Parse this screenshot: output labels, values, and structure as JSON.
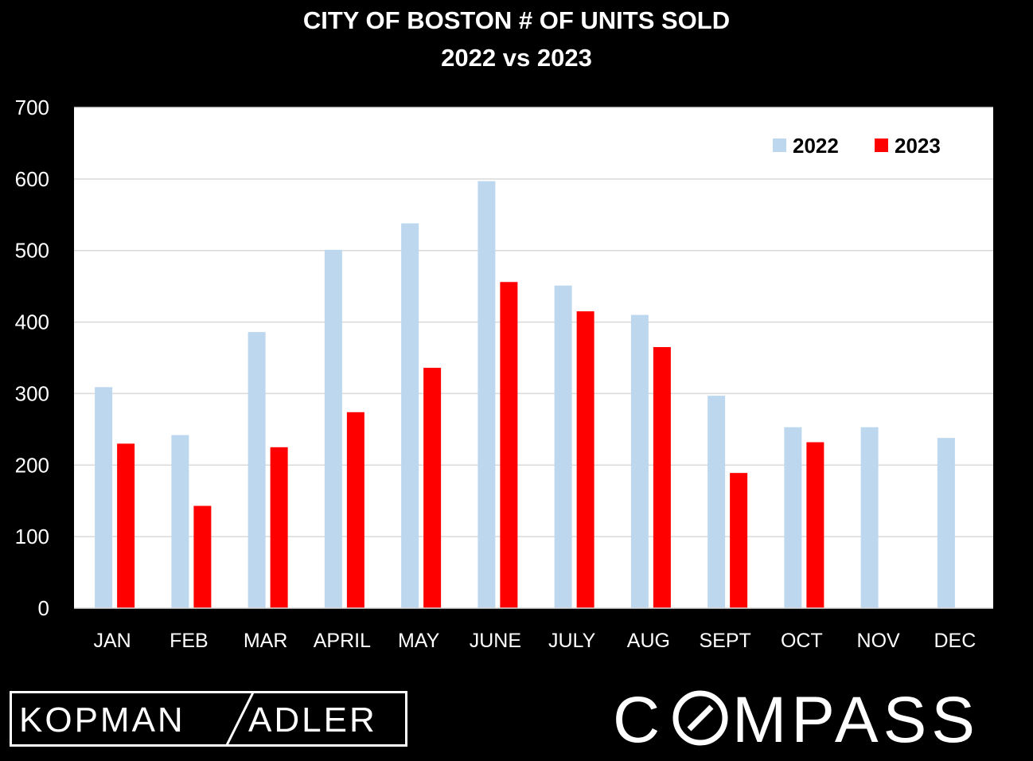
{
  "chart_data": {
    "type": "bar",
    "title": "CITY OF BOSTON # OF UNITS SOLD",
    "subtitle": "2022 vs 2023",
    "categories": [
      "JAN",
      "FEB",
      "MAR",
      "APRIL",
      "MAY",
      "JUNE",
      "JULY",
      "AUG",
      "SEPT",
      "OCT",
      "NOV",
      "DEC"
    ],
    "series": [
      {
        "name": "2022",
        "color": "#bdd7ee",
        "values": [
          309,
          242,
          386,
          501,
          538,
          597,
          451,
          410,
          297,
          253,
          253,
          238
        ]
      },
      {
        "name": "2023",
        "color": "#ff0000",
        "values": [
          230,
          143,
          225,
          274,
          336,
          456,
          415,
          365,
          189,
          232,
          null,
          null
        ]
      }
    ],
    "yticks": [
      "0",
      "100",
      "200",
      "300",
      "400",
      "500",
      "600",
      "700"
    ],
    "ylim": [
      0,
      700
    ],
    "grid": true,
    "legend_position": "top-right",
    "plot_background": "#ffffff",
    "page_background": "#000000"
  },
  "branding": {
    "left_logo_part1": "KOPMAN",
    "left_logo_part2": "ADLER",
    "right_logo_part1": "C",
    "right_logo_part2": "MPASS"
  }
}
